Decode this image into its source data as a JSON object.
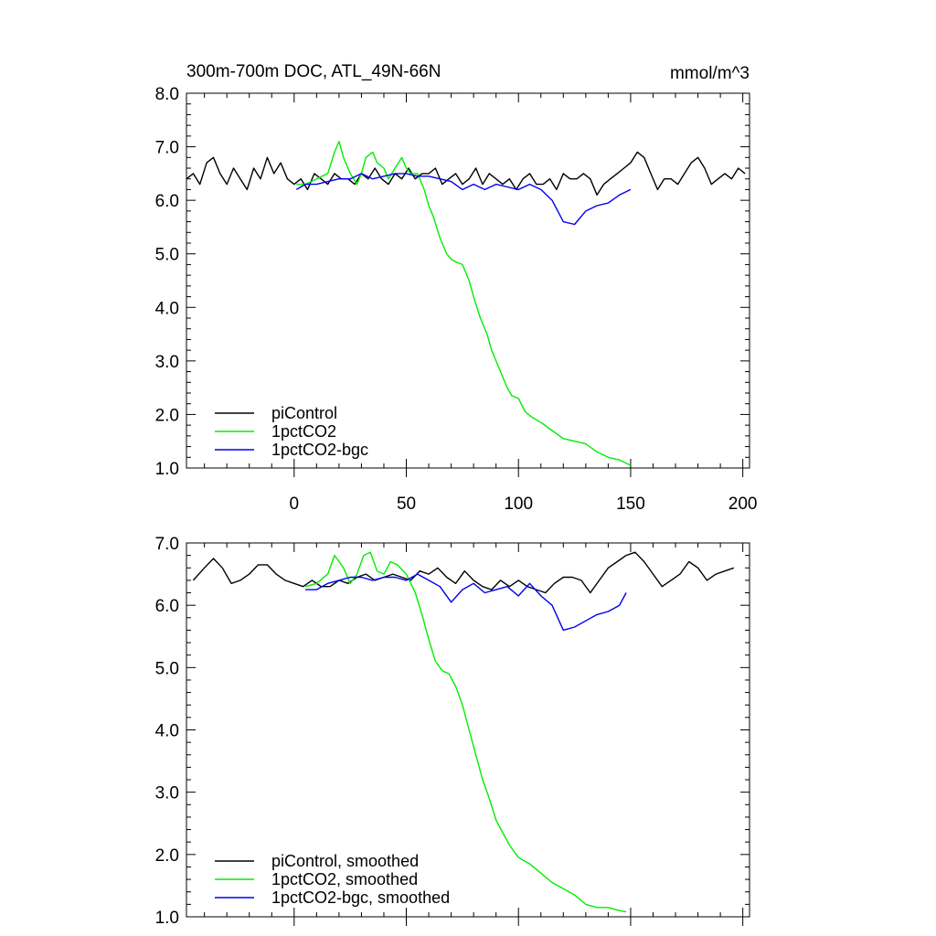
{
  "chart_data": [
    {
      "type": "line",
      "title": "300m-700m DOC, ATL_49N-66N",
      "units": "mmol/m^3",
      "xlim": [
        -48,
        203
      ],
      "ylim": [
        1.0,
        8.0
      ],
      "x_ticks": [
        0,
        50,
        100,
        150,
        200
      ],
      "x_tick_labels": [
        "0",
        "50",
        "100",
        "150",
        "200"
      ],
      "y_ticks": [
        1.0,
        2.0,
        3.0,
        4.0,
        5.0,
        6.0,
        7.0,
        8.0
      ],
      "y_tick_labels": [
        "1.0",
        "2.0",
        "3.0",
        "4.0",
        "5.0",
        "6.0",
        "7.0",
        "8.0"
      ],
      "legend_position": "bottom-left",
      "series": [
        {
          "name": "piControl",
          "color": "#000000",
          "x": [
            -48,
            -45,
            -42,
            -39,
            -36,
            -33,
            -30,
            -27,
            -24,
            -21,
            -18,
            -15,
            -12,
            -9,
            -6,
            -3,
            0,
            3,
            6,
            9,
            12,
            15,
            18,
            21,
            24,
            27,
            30,
            33,
            36,
            39,
            42,
            45,
            48,
            51,
            54,
            57,
            60,
            63,
            66,
            69,
            72,
            75,
            78,
            81,
            84,
            87,
            90,
            93,
            96,
            99,
            102,
            105,
            108,
            111,
            114,
            117,
            120,
            123,
            126,
            129,
            132,
            135,
            138,
            141,
            144,
            147,
            150,
            153,
            156,
            159,
            162,
            165,
            168,
            171,
            174,
            177,
            180,
            183,
            186,
            189,
            192,
            195,
            198,
            201
          ],
          "y": [
            6.4,
            6.5,
            6.3,
            6.7,
            6.8,
            6.5,
            6.3,
            6.6,
            6.4,
            6.2,
            6.6,
            6.4,
            6.8,
            6.5,
            6.7,
            6.4,
            6.3,
            6.4,
            6.2,
            6.5,
            6.4,
            6.3,
            6.5,
            6.4,
            6.4,
            6.3,
            6.5,
            6.4,
            6.6,
            6.4,
            6.3,
            6.5,
            6.4,
            6.6,
            6.4,
            6.5,
            6.5,
            6.6,
            6.3,
            6.4,
            6.5,
            6.3,
            6.4,
            6.6,
            6.3,
            6.5,
            6.4,
            6.3,
            6.4,
            6.2,
            6.4,
            6.5,
            6.3,
            6.3,
            6.4,
            6.2,
            6.5,
            6.4,
            6.4,
            6.5,
            6.4,
            6.1,
            6.3,
            6.4,
            6.5,
            6.6,
            6.7,
            6.9,
            6.8,
            6.5,
            6.2,
            6.4,
            6.4,
            6.3,
            6.5,
            6.7,
            6.8,
            6.6,
            6.3,
            6.4,
            6.5,
            6.4,
            6.6,
            6.5
          ]
        },
        {
          "name": "1pctCO2",
          "color": "#00ee00",
          "x": [
            1,
            5,
            10,
            15,
            18,
            20,
            22,
            25,
            28,
            30,
            32,
            35,
            37,
            40,
            42,
            45,
            48,
            50,
            52,
            55,
            58,
            60,
            62,
            65,
            68,
            70,
            72,
            75,
            78,
            80,
            83,
            86,
            88,
            90,
            93,
            95,
            97,
            100,
            103,
            106,
            110,
            115,
            120,
            125,
            130,
            135,
            140,
            145,
            150
          ],
          "y": [
            6.3,
            6.3,
            6.4,
            6.5,
            6.9,
            7.1,
            6.8,
            6.5,
            6.3,
            6.5,
            6.8,
            6.9,
            6.7,
            6.6,
            6.4,
            6.6,
            6.8,
            6.6,
            6.5,
            6.5,
            6.2,
            5.9,
            5.7,
            5.3,
            5.0,
            4.9,
            4.85,
            4.8,
            4.5,
            4.2,
            3.8,
            3.5,
            3.2,
            3.0,
            2.7,
            2.5,
            2.35,
            2.3,
            2.05,
            1.95,
            1.85,
            1.7,
            1.55,
            1.5,
            1.45,
            1.3,
            1.2,
            1.15,
            1.05
          ]
        },
        {
          "name": "1pctCO2-bgc",
          "color": "#0000ee",
          "x": [
            1,
            5,
            10,
            15,
            20,
            25,
            30,
            35,
            40,
            45,
            50,
            55,
            60,
            65,
            70,
            75,
            80,
            85,
            90,
            95,
            100,
            105,
            110,
            115,
            120,
            125,
            130,
            135,
            140,
            145,
            150
          ],
          "y": [
            6.2,
            6.3,
            6.3,
            6.35,
            6.4,
            6.4,
            6.5,
            6.4,
            6.45,
            6.5,
            6.5,
            6.45,
            6.45,
            6.4,
            6.35,
            6.2,
            6.3,
            6.2,
            6.3,
            6.25,
            6.2,
            6.3,
            6.2,
            6.0,
            5.6,
            5.55,
            5.8,
            5.9,
            5.95,
            6.1,
            6.2
          ]
        }
      ]
    },
    {
      "type": "line",
      "xlim": [
        -48,
        203
      ],
      "ylim": [
        1.0,
        7.0
      ],
      "y_ticks": [
        1.0,
        2.0,
        3.0,
        4.0,
        5.0,
        6.0,
        7.0
      ],
      "y_tick_labels": [
        "1.0",
        "2.0",
        "3.0",
        "4.0",
        "5.0",
        "6.0",
        "7.0"
      ],
      "legend_position": "bottom-left",
      "series": [
        {
          "name": "piControl, smoothed",
          "color": "#000000",
          "x": [
            -45,
            -40,
            -36,
            -32,
            -28,
            -24,
            -20,
            -16,
            -12,
            -8,
            -4,
            0,
            4,
            8,
            12,
            16,
            20,
            24,
            28,
            32,
            36,
            40,
            44,
            48,
            52,
            56,
            60,
            64,
            68,
            72,
            76,
            80,
            84,
            88,
            92,
            96,
            100,
            104,
            108,
            112,
            116,
            120,
            124,
            128,
            132,
            136,
            140,
            144,
            148,
            152,
            156,
            160,
            164,
            168,
            172,
            176,
            180,
            184,
            188,
            192,
            196
          ],
          "y": [
            6.4,
            6.6,
            6.75,
            6.6,
            6.35,
            6.4,
            6.5,
            6.65,
            6.65,
            6.5,
            6.4,
            6.35,
            6.3,
            6.4,
            6.3,
            6.3,
            6.4,
            6.35,
            6.45,
            6.5,
            6.4,
            6.45,
            6.5,
            6.45,
            6.4,
            6.55,
            6.5,
            6.6,
            6.45,
            6.35,
            6.55,
            6.4,
            6.3,
            6.25,
            6.4,
            6.3,
            6.4,
            6.3,
            6.25,
            6.2,
            6.35,
            6.45,
            6.45,
            6.4,
            6.2,
            6.4,
            6.6,
            6.7,
            6.8,
            6.85,
            6.7,
            6.5,
            6.3,
            6.4,
            6.5,
            6.7,
            6.6,
            6.4,
            6.5,
            6.55,
            6.6
          ]
        },
        {
          "name": "1pctCO2, smoothed",
          "color": "#00ee00",
          "x": [
            5,
            10,
            15,
            18,
            22,
            25,
            28,
            31,
            34,
            37,
            40,
            43,
            46,
            50,
            54,
            57,
            60,
            63,
            66,
            69,
            72,
            75,
            78,
            81,
            84,
            87,
            90,
            93,
            96,
            100,
            105,
            110,
            115,
            120,
            125,
            130,
            135,
            140,
            145,
            148
          ],
          "y": [
            6.3,
            6.35,
            6.5,
            6.8,
            6.6,
            6.35,
            6.5,
            6.8,
            6.85,
            6.55,
            6.5,
            6.7,
            6.65,
            6.5,
            6.2,
            5.85,
            5.45,
            5.1,
            4.95,
            4.9,
            4.7,
            4.4,
            4.0,
            3.6,
            3.2,
            2.9,
            2.55,
            2.35,
            2.15,
            1.95,
            1.85,
            1.7,
            1.55,
            1.45,
            1.35,
            1.2,
            1.15,
            1.15,
            1.1,
            1.08
          ]
        },
        {
          "name": "1pctCO2-bgc, smoothed",
          "color": "#0000ee",
          "x": [
            5,
            10,
            15,
            20,
            25,
            30,
            35,
            40,
            45,
            50,
            55,
            60,
            65,
            70,
            75,
            80,
            85,
            90,
            95,
            100,
            105,
            110,
            115,
            120,
            125,
            130,
            135,
            140,
            145,
            148
          ],
          "y": [
            6.25,
            6.25,
            6.35,
            6.4,
            6.45,
            6.45,
            6.4,
            6.45,
            6.45,
            6.4,
            6.5,
            6.4,
            6.3,
            6.05,
            6.25,
            6.35,
            6.2,
            6.25,
            6.3,
            6.15,
            6.35,
            6.15,
            6.0,
            5.6,
            5.65,
            5.75,
            5.85,
            5.9,
            6.0,
            6.2
          ]
        }
      ]
    }
  ]
}
